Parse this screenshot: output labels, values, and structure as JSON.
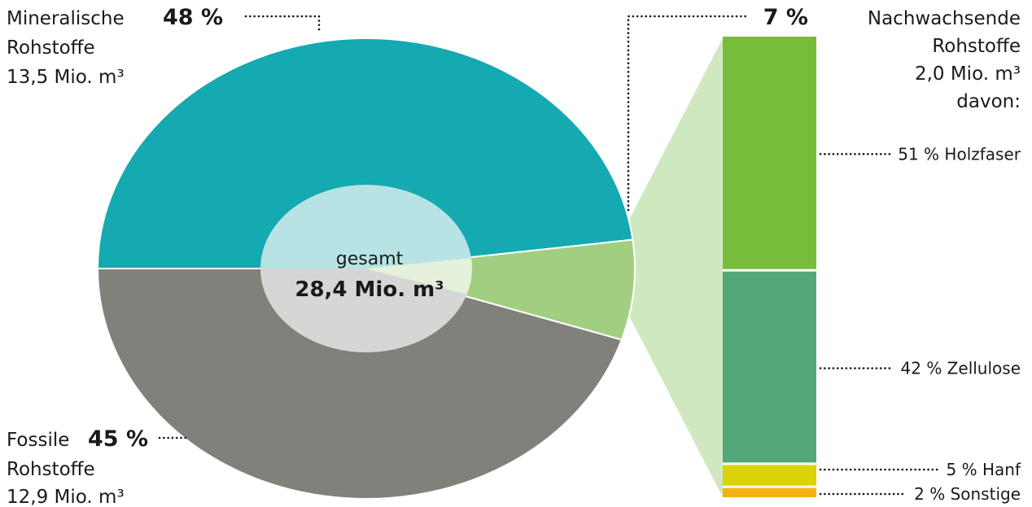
{
  "colors": {
    "mineral": "#15a9b2",
    "fossil": "#81807a",
    "renewable": "#a2cf7f",
    "connector": "#d0e8c0",
    "inner_mineral": "#b7e3e5",
    "inner_fossil": "#d6d6d5",
    "inner_renewable": "#e5f1da",
    "holzfaser": "#78bc3b",
    "zellulose": "#52a878",
    "hanf": "#dbd20b",
    "sonstige": "#f5b312"
  },
  "chart_data": [
    {
      "type": "pie",
      "center": {
        "label": "gesamt",
        "value": "28,4 Mio. m³"
      },
      "slices": [
        {
          "key": "mineral",
          "pct": 48,
          "pct_label": "48 %",
          "name_line1": "Mineralische",
          "name_line2": "Rohstoffe",
          "amount": "13,5 Mio. m³"
        },
        {
          "key": "fossil",
          "pct": 45,
          "pct_label": "45 %",
          "name_line1": "Fossile",
          "name_line2": "Rohstoffe",
          "amount": "12,9 Mio. m³"
        },
        {
          "key": "renewable",
          "pct": 7,
          "pct_label": "7 %",
          "name_line1": "Nachwachsende",
          "name_line2": "Rohstoffe",
          "amount": "2,0 Mio. m³",
          "suffix": "davon:"
        }
      ]
    },
    {
      "type": "bar",
      "stacked": true,
      "segments": [
        {
          "key": "holzfaser",
          "pct": 51,
          "label": "51 % Holzfaser"
        },
        {
          "key": "zellulose",
          "pct": 42,
          "label": "42 % Zellulose"
        },
        {
          "key": "hanf",
          "pct": 5,
          "label": "5 % Hanf"
        },
        {
          "key": "sonstige",
          "pct": 2,
          "label": "2 % Sonstige"
        }
      ]
    }
  ]
}
